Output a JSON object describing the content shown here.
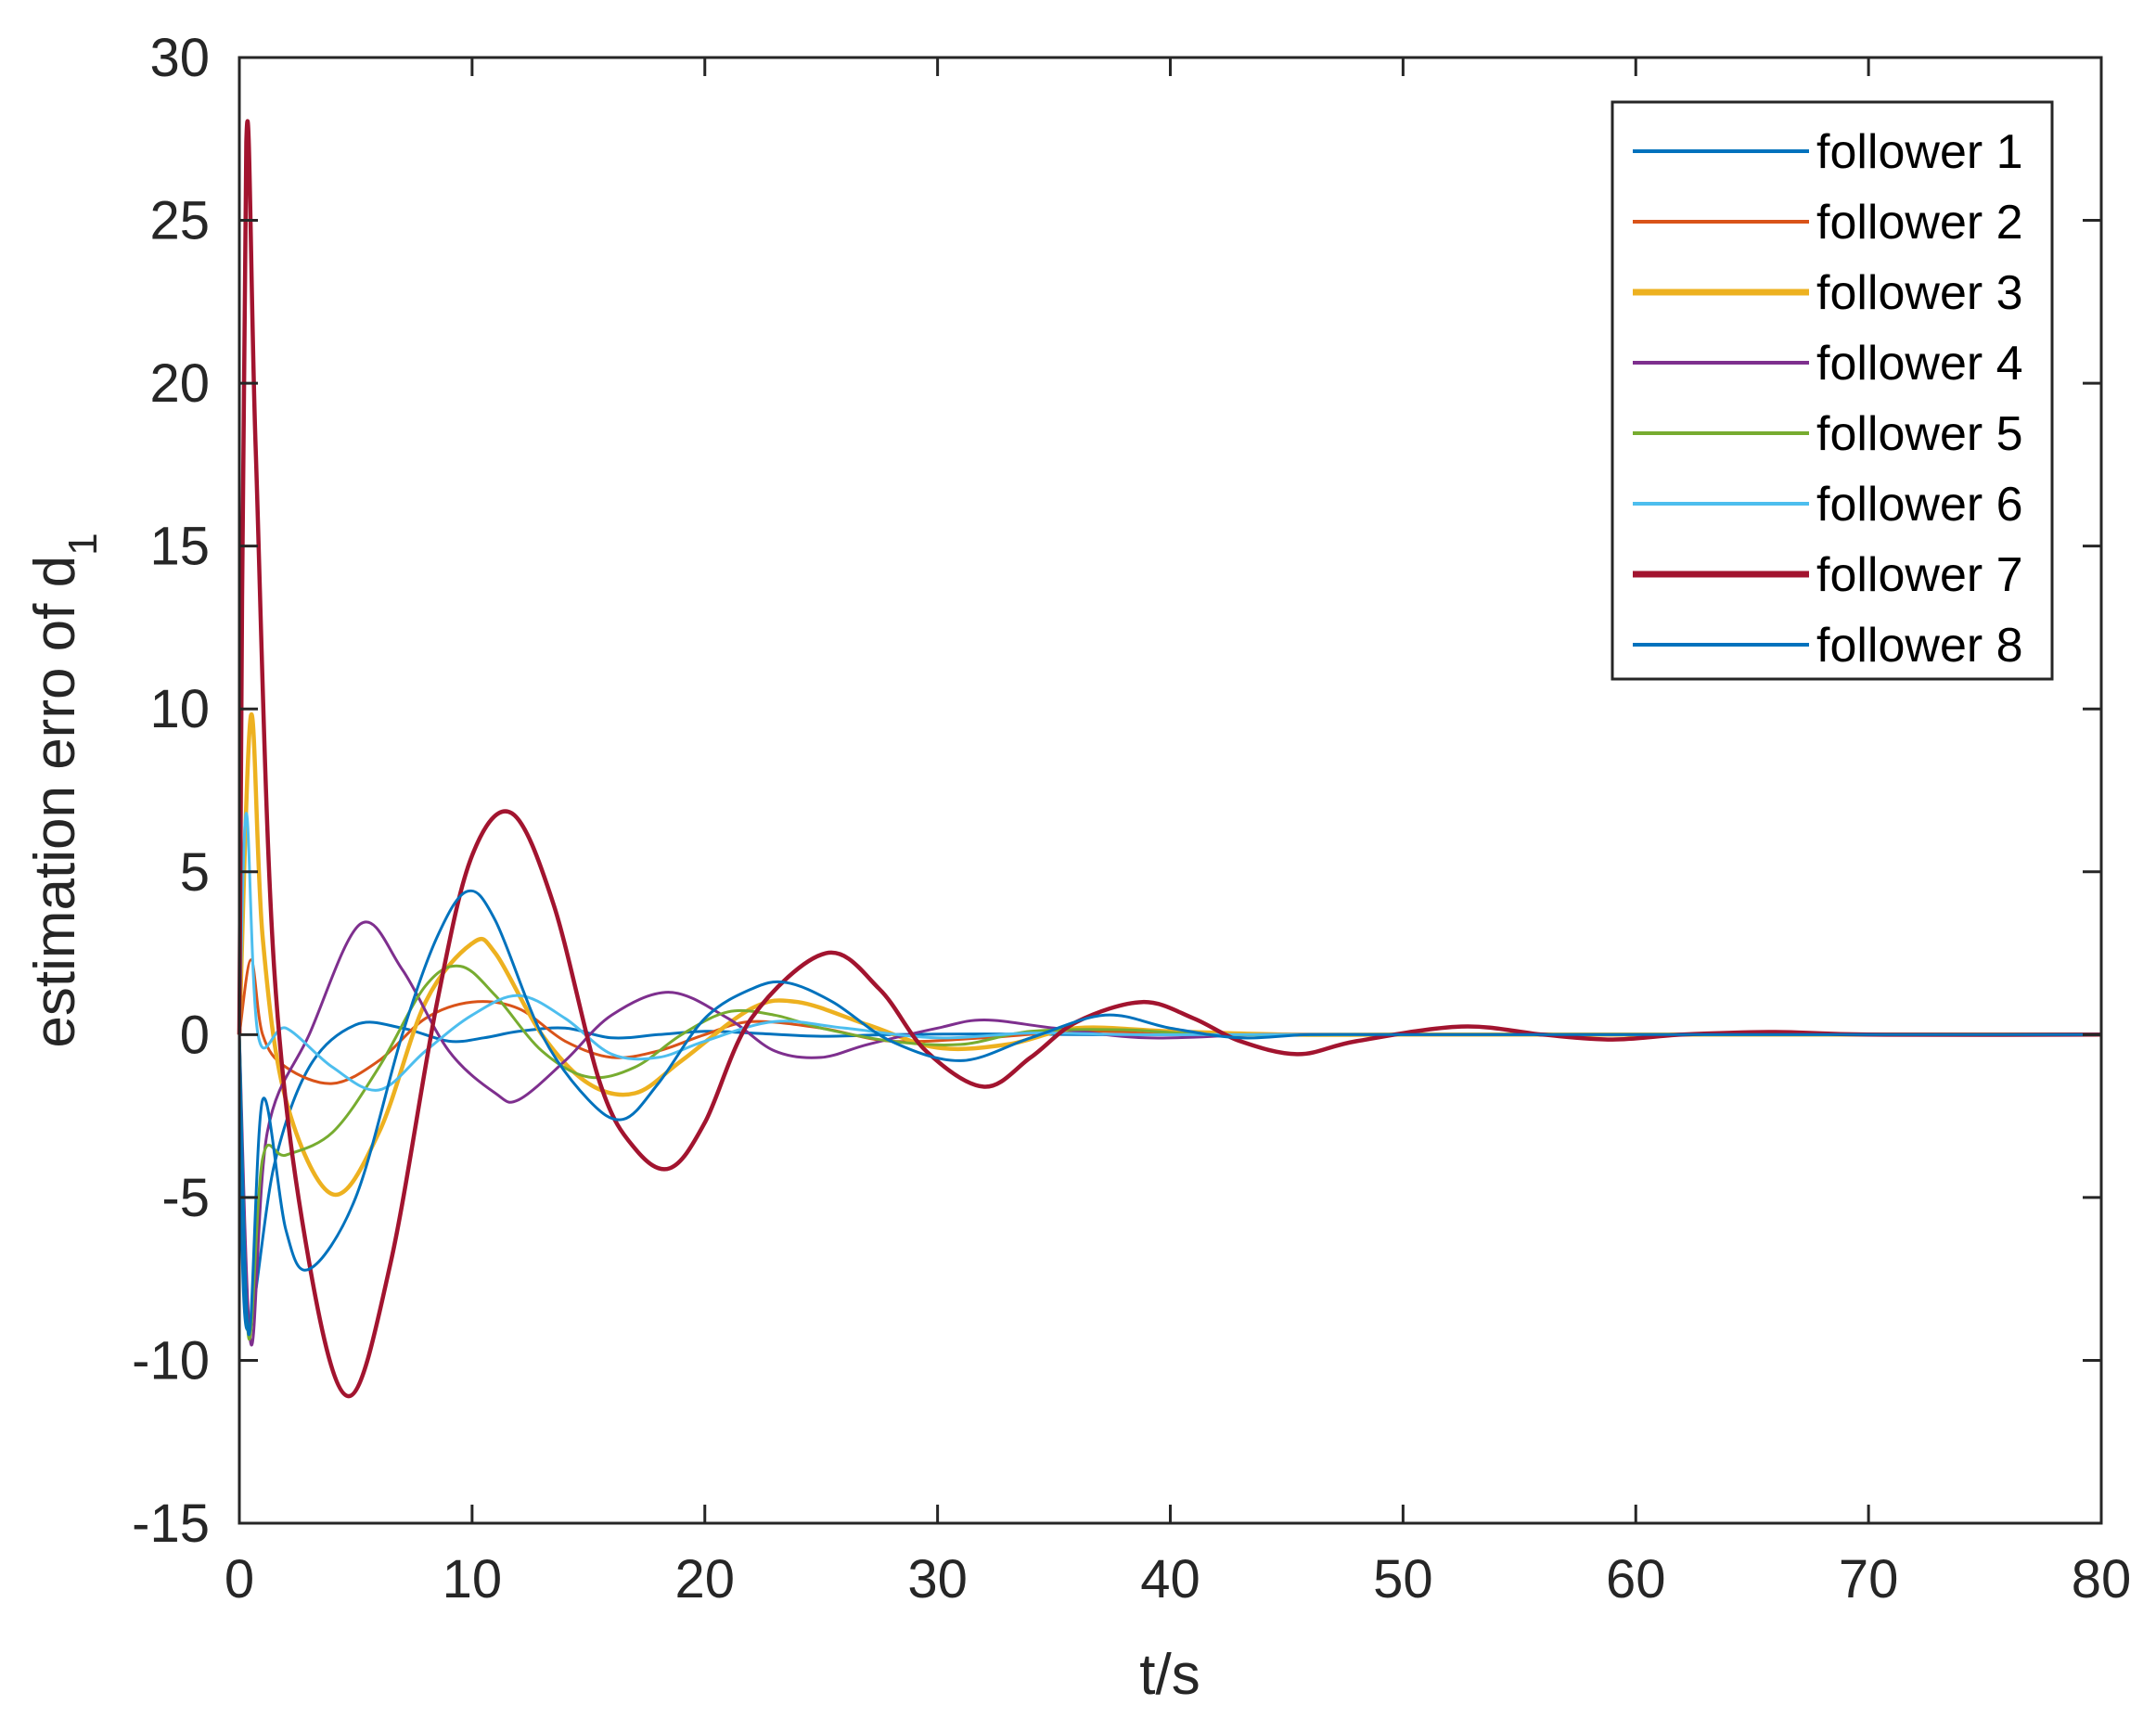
{
  "chart_data": {
    "type": "line",
    "title": "",
    "xlabel": "t/s",
    "ylabel": "estimation erro of d",
    "ylabel_subscript": "1",
    "xlim": [
      0,
      80
    ],
    "ylim": [
      -15,
      30
    ],
    "xticks": [
      "0",
      "10",
      "20",
      "30",
      "40",
      "50",
      "60",
      "70",
      "80"
    ],
    "yticks": [
      "-15",
      "-10",
      "-5",
      "0",
      "5",
      "10",
      "15",
      "20",
      "25",
      "30"
    ],
    "grid": false,
    "legend_position": "top-right",
    "series": [
      {
        "name": "follower 1",
        "color": "#0072BD",
        "x": [
          0,
          0.3,
          1.5,
          3,
          5,
          7,
          9,
          10.5,
          12,
          14,
          16,
          18,
          20,
          22,
          25,
          28,
          32,
          36,
          40,
          45,
          50,
          60,
          80
        ],
        "y": [
          0,
          -9,
          -4,
          -1,
          0.3,
          0.2,
          -0.2,
          -0.1,
          0.1,
          0.2,
          -0.1,
          0,
          0.1,
          0.05,
          -0.05,
          0,
          0.02,
          0,
          0,
          0,
          0,
          0,
          0
        ]
      },
      {
        "name": "follower 2",
        "color": "#D95319",
        "x": [
          0,
          0.5,
          1,
          2,
          4,
          6,
          8,
          10,
          12,
          14,
          16,
          18,
          20,
          22,
          25,
          28,
          32,
          36,
          40,
          45,
          50,
          60,
          80
        ],
        "y": [
          0,
          2.3,
          0,
          -1,
          -1.5,
          -0.8,
          0.5,
          1,
          0.8,
          -0.2,
          -0.7,
          -0.5,
          0,
          0.4,
          0.2,
          -0.2,
          -0.1,
          0.1,
          0.05,
          0,
          0,
          0,
          0
        ]
      },
      {
        "name": "follower 3",
        "color": "#EDB120",
        "x": [
          0,
          0.5,
          1,
          2,
          4,
          6,
          8,
          10,
          11,
          13,
          15,
          17,
          19,
          22,
          24,
          27,
          30,
          33,
          36,
          40,
          45,
          50,
          60,
          80
        ],
        "y": [
          0,
          9.8,
          3,
          -2,
          -4.9,
          -3,
          1,
          2.8,
          2.5,
          0,
          -1.5,
          -1.8,
          -0.8,
          0.8,
          1,
          0.3,
          -0.4,
          -0.3,
          0.2,
          0.1,
          0,
          0,
          0,
          0
        ]
      },
      {
        "name": "follower 4",
        "color": "#7E2F8E",
        "x": [
          0,
          0.5,
          1.2,
          3,
          5.2,
          7,
          9,
          11,
          12,
          14,
          16,
          18.5,
          21,
          23,
          25,
          27,
          30,
          32,
          35,
          39,
          44,
          50,
          60,
          80
        ],
        "y": [
          0,
          -9.5,
          -3,
          0,
          3.4,
          2,
          -0.5,
          -1.8,
          -2,
          -0.8,
          0.6,
          1.3,
          0.5,
          -0.5,
          -0.7,
          -0.3,
          0.2,
          0.45,
          0.2,
          -0.1,
          0,
          0,
          0,
          0
        ]
      },
      {
        "name": "follower 5",
        "color": "#77AC30",
        "x": [
          0,
          0.4,
          1,
          2,
          4,
          6,
          8,
          9.5,
          11,
          13,
          15,
          17,
          19,
          21,
          23,
          25,
          28,
          31,
          34,
          38,
          42,
          50,
          60,
          80
        ],
        "y": [
          0,
          -9.3,
          -3.8,
          -3.7,
          -3,
          -1,
          1.5,
          2.1,
          1.2,
          -0.5,
          -1.3,
          -1,
          0,
          0.7,
          0.6,
          0.2,
          -0.2,
          -0.3,
          0.1,
          0.15,
          0,
          0,
          0,
          0
        ]
      },
      {
        "name": "follower 6",
        "color": "#4DBEEE",
        "x": [
          0,
          0.3,
          0.8,
          2,
          4,
          6,
          8,
          10,
          12,
          14,
          16,
          18,
          20,
          23,
          26,
          30,
          34,
          38,
          42,
          50,
          60,
          80
        ],
        "y": [
          0,
          6.8,
          0,
          0.2,
          -1,
          -1.7,
          -0.5,
          0.6,
          1.2,
          0.5,
          -0.6,
          -0.7,
          -0.2,
          0.4,
          0.2,
          -0.1,
          0.05,
          0,
          0,
          0,
          0,
          0
        ]
      },
      {
        "name": "follower 7",
        "color": "#A2142F",
        "x": [
          0,
          0.3,
          0.7,
          1.5,
          3,
          4.7,
          6.5,
          8.5,
          10,
          11.7,
          13.5,
          15.5,
          17,
          18.5,
          20,
          22,
          25.2,
          27.5,
          29.5,
          32,
          34,
          36,
          38.8,
          41,
          43,
          45.5,
          48,
          52.5,
          56,
          59,
          62,
          66,
          70,
          80
        ],
        "y": [
          0,
          27.4,
          18,
          2,
          -7,
          -11.1,
          -7,
          1,
          5.5,
          6.8,
          4,
          -1.5,
          -3.5,
          -4.1,
          -2.7,
          0.5,
          2.5,
          1.4,
          -0.5,
          -1.6,
          -0.7,
          0.4,
          1,
          0.5,
          -0.2,
          -0.6,
          -0.2,
          0.25,
          0,
          -0.15,
          0,
          0.08,
          0,
          0
        ]
      },
      {
        "name": "follower 8",
        "color": "#0072BD",
        "x": [
          0,
          0.4,
          1,
          2,
          3,
          5,
          7,
          8.5,
          9.8,
          11,
          13,
          15,
          16.5,
          18,
          20,
          22,
          23.5,
          25.5,
          28,
          31,
          34,
          37.2,
          40,
          43,
          46,
          50,
          60,
          80
        ],
        "y": [
          0,
          -9.2,
          -2,
          -6,
          -7.2,
          -5,
          0,
          3,
          4.4,
          3.5,
          0,
          -2,
          -2.6,
          -1.5,
          0.5,
          1.4,
          1.6,
          1,
          -0.2,
          -0.8,
          -0.1,
          0.6,
          0.2,
          -0.1,
          0,
          0,
          0,
          0
        ]
      }
    ]
  }
}
